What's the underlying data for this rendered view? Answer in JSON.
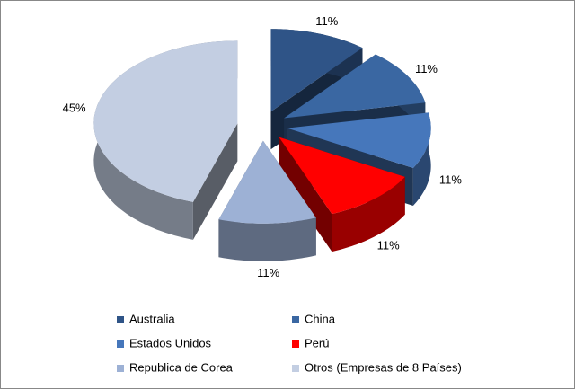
{
  "chart_data": {
    "type": "pie",
    "categories": [
      "Australia",
      "China",
      "Estados Unidos",
      "Perú",
      "Republica de Corea",
      "Otros (Empresas de 8 Países)"
    ],
    "values": [
      11,
      11,
      11,
      11,
      11,
      45
    ],
    "value_labels": [
      "11%",
      "11%",
      "11%",
      "11%",
      "11%",
      "45%"
    ],
    "colors": [
      "#2f5487",
      "#3a67a2",
      "#4677bb",
      "#ff0000",
      "#9db1d5",
      "#c3cee2"
    ],
    "legend": "bottom"
  }
}
